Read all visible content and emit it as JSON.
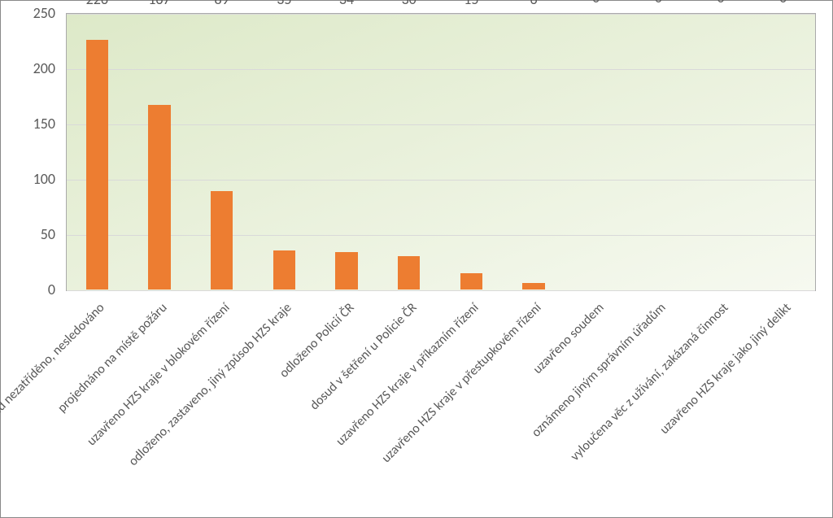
{
  "chart": {
    "type": "bar",
    "categories": [
      "dosud nezatříděno, nesledováno",
      "projednáno na místě požáru",
      "uzavřeno HZS kraje v blokovém řízení",
      "odloženo, zastaveno, jiný způsob HZS kraje",
      "odloženo Policií ČR",
      "dosud v šetření u Policie ČR",
      "uzavřeno HZS kraje v příkazním řízení",
      "uzavřeno HZS kraje v přestupkovém řízení",
      "uzavřeno soudem",
      "oznámeno jiným správním úřadům",
      "vyloučena věc z užívání, zakázaná činnost",
      "uzavřeno HZS kraje jako jiný delikt"
    ],
    "values": [
      226,
      167,
      89,
      35,
      34,
      30,
      15,
      6,
      0,
      0,
      0,
      0
    ],
    "bar_color": "#ed7d31",
    "ylim": [
      0,
      250
    ],
    "ytick_step": 50,
    "y_ticks": [
      0,
      50,
      100,
      150,
      200,
      250
    ],
    "grid_color": "#d9d9d9",
    "background_gradient_start": "#dde9c8",
    "background_gradient_end": "#f6f9f0",
    "label_color": "#595959",
    "label_fontsize": 18,
    "xlabel_fontsize": 16,
    "xlabel_rotation": -45,
    "bar_width": 0.36
  }
}
